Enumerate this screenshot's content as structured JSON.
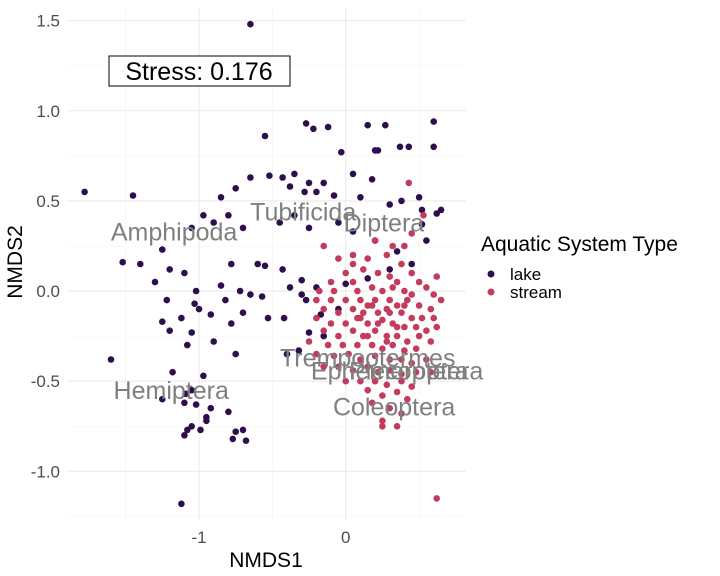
{
  "chart_data": {
    "type": "scatter",
    "xlabel": "NMDS1",
    "ylabel": "NMDS2",
    "xlim": [
      -1.9,
      0.82
    ],
    "ylim": [
      -1.27,
      1.57
    ],
    "x_ticks": [
      -1,
      0
    ],
    "y_ticks": [
      -1.0,
      -0.5,
      0.0,
      0.5,
      1.0,
      1.5
    ],
    "x_tick_labels": [
      "-1",
      "0"
    ],
    "y_tick_labels": [
      "-1.0",
      "-0.5",
      "0.0",
      "0.5",
      "1.0",
      "1.5"
    ],
    "grid": true,
    "legend_position": "right",
    "stress_label": "Stress:  0.176",
    "legend": {
      "title": "Aquatic System Type",
      "entries": [
        "lake",
        "stream"
      ]
    },
    "series": [
      {
        "name": "lake",
        "color": "#2d0f4e",
        "points": [
          [
            -0.65,
            1.48
          ],
          [
            -0.55,
            0.86
          ],
          [
            -0.27,
            0.93
          ],
          [
            -0.22,
            0.9
          ],
          [
            -0.12,
            0.91
          ],
          [
            -0.03,
            0.77
          ],
          [
            0.15,
            0.92
          ],
          [
            0.2,
            0.78
          ],
          [
            0.22,
            0.78
          ],
          [
            0.27,
            0.92
          ],
          [
            0.37,
            0.8
          ],
          [
            0.43,
            0.8
          ],
          [
            0.6,
            0.94
          ],
          [
            0.6,
            0.8
          ],
          [
            -0.65,
            0.63
          ],
          [
            -0.52,
            0.64
          ],
          [
            -0.43,
            0.63
          ],
          [
            -0.35,
            0.65
          ],
          [
            -0.25,
            0.6
          ],
          [
            -0.15,
            0.6
          ],
          [
            0.05,
            0.65
          ],
          [
            0.18,
            0.62
          ],
          [
            -0.75,
            0.57
          ],
          [
            -0.38,
            0.58
          ],
          [
            -0.28,
            0.55
          ],
          [
            -0.2,
            0.55
          ],
          [
            -0.08,
            0.53
          ],
          [
            0.1,
            0.52
          ],
          [
            0.3,
            0.48
          ],
          [
            0.38,
            0.5
          ],
          [
            0.5,
            0.52
          ],
          [
            0.52,
            0.45
          ],
          [
            0.62,
            0.43
          ],
          [
            0.65,
            0.45
          ],
          [
            -1.78,
            0.55
          ],
          [
            -1.45,
            0.53
          ],
          [
            -0.85,
            0.52
          ],
          [
            -0.97,
            0.42
          ],
          [
            -1.05,
            0.35
          ],
          [
            -1.25,
            0.23
          ],
          [
            -0.9,
            0.38
          ],
          [
            -0.8,
            0.42
          ],
          [
            -0.7,
            0.35
          ],
          [
            -0.45,
            0.38
          ],
          [
            -0.35,
            0.42
          ],
          [
            -0.25,
            0.35
          ],
          [
            -0.05,
            0.38
          ],
          [
            0.05,
            0.33
          ],
          [
            0.2,
            0.28
          ],
          [
            0.35,
            0.22
          ],
          [
            0.52,
            0.37
          ],
          [
            0.55,
            0.28
          ],
          [
            -1.52,
            0.16
          ],
          [
            -1.4,
            0.15
          ],
          [
            -1.2,
            0.12
          ],
          [
            -1.1,
            0.1
          ],
          [
            -0.78,
            0.15
          ],
          [
            -0.6,
            0.15
          ],
          [
            -0.55,
            0.14
          ],
          [
            -0.43,
            0.12
          ],
          [
            -0.3,
            0.06
          ],
          [
            -0.2,
            0.02
          ],
          [
            0.0,
            0.04
          ],
          [
            0.15,
            0.07
          ],
          [
            0.3,
            0.12
          ],
          [
            0.45,
            0.15
          ],
          [
            -1.3,
            0.05
          ],
          [
            -1.02,
            0.0
          ],
          [
            -0.85,
            0.03
          ],
          [
            -0.65,
            -0.02
          ],
          [
            -0.38,
            0.02
          ],
          [
            -1.22,
            -0.05
          ],
          [
            -1.03,
            -0.07
          ],
          [
            -0.82,
            -0.05
          ],
          [
            -0.72,
            0.0
          ],
          [
            -0.57,
            -0.03
          ],
          [
            -0.3,
            -0.02
          ],
          [
            -0.27,
            -0.05
          ],
          [
            -1.0,
            -0.1
          ],
          [
            -0.92,
            -0.13
          ],
          [
            -0.7,
            -0.12
          ],
          [
            -0.53,
            -0.15
          ],
          [
            -0.17,
            -0.13
          ],
          [
            -0.05,
            -0.1
          ],
          [
            -1.25,
            -0.17
          ],
          [
            -1.12,
            -0.15
          ],
          [
            -0.78,
            -0.18
          ],
          [
            -0.42,
            -0.15
          ],
          [
            -1.2,
            -0.22
          ],
          [
            -1.05,
            -0.23
          ],
          [
            -0.25,
            -0.23
          ],
          [
            -0.15,
            -0.25
          ],
          [
            -1.08,
            -0.3
          ],
          [
            -0.9,
            -0.28
          ],
          [
            -0.75,
            -0.35
          ],
          [
            -0.4,
            -0.35
          ],
          [
            -0.32,
            -0.33
          ],
          [
            -1.6,
            -0.38
          ],
          [
            -1.18,
            -0.45
          ],
          [
            -0.97,
            -0.47
          ],
          [
            -1.05,
            -0.55
          ],
          [
            -1.02,
            -0.63
          ],
          [
            -0.92,
            -0.65
          ],
          [
            -1.1,
            -0.62
          ],
          [
            -0.95,
            -0.7
          ],
          [
            -0.8,
            -0.67
          ],
          [
            -1.05,
            -0.75
          ],
          [
            -0.99,
            -0.77
          ],
          [
            -0.75,
            -0.78
          ],
          [
            -0.7,
            -0.77
          ],
          [
            -1.1,
            -0.8
          ],
          [
            -0.95,
            -0.72
          ],
          [
            -0.77,
            -0.82
          ],
          [
            -1.08,
            -0.77
          ],
          [
            -1.25,
            -0.6
          ],
          [
            -1.09,
            -0.57
          ],
          [
            -1.12,
            -1.18
          ],
          [
            -0.68,
            -0.83
          ]
        ]
      },
      {
        "name": "stream",
        "color": "#c43b5c",
        "points": [
          [
            0.43,
            0.6
          ],
          [
            0.45,
            0.32
          ],
          [
            0.53,
            0.42
          ],
          [
            0.2,
            0.28
          ],
          [
            0.32,
            0.25
          ],
          [
            -0.15,
            0.25
          ],
          [
            -0.05,
            0.18
          ],
          [
            0.05,
            0.2
          ],
          [
            0.15,
            0.18
          ],
          [
            0.28,
            0.2
          ],
          [
            0.38,
            0.15
          ],
          [
            0.4,
            0.25
          ],
          [
            0.45,
            0.1
          ],
          [
            0.12,
            0.12
          ],
          [
            0.22,
            0.1
          ],
          [
            0.3,
            0.08
          ],
          [
            0.35,
            0.05
          ],
          [
            0.0,
            0.1
          ],
          [
            0.05,
            0.05
          ],
          [
            -0.1,
            0.05
          ],
          [
            -0.18,
            0.0
          ],
          [
            -0.08,
            0.0
          ],
          [
            0.08,
            0.0
          ],
          [
            0.18,
            0.02
          ],
          [
            0.25,
            0.0
          ],
          [
            0.32,
            0.02
          ],
          [
            0.4,
            0.0
          ],
          [
            0.45,
            -0.02
          ],
          [
            0.5,
            0.05
          ],
          [
            0.55,
            0.02
          ],
          [
            0.6,
            -0.02
          ],
          [
            0.62,
            0.08
          ],
          [
            -0.2,
            -0.05
          ],
          [
            -0.1,
            -0.05
          ],
          [
            0.0,
            -0.05
          ],
          [
            0.1,
            -0.05
          ],
          [
            0.15,
            -0.08
          ],
          [
            0.2,
            -0.05
          ],
          [
            0.3,
            -0.05
          ],
          [
            0.35,
            -0.08
          ],
          [
            0.42,
            -0.05
          ],
          [
            0.5,
            -0.08
          ],
          [
            0.58,
            -0.1
          ],
          [
            0.65,
            -0.05
          ],
          [
            -0.15,
            -0.1
          ],
          [
            -0.05,
            -0.12
          ],
          [
            0.05,
            -0.1
          ],
          [
            0.12,
            -0.12
          ],
          [
            0.22,
            -0.12
          ],
          [
            0.28,
            -0.1
          ],
          [
            0.38,
            -0.12
          ],
          [
            0.45,
            -0.15
          ],
          [
            0.52,
            -0.15
          ],
          [
            0.6,
            -0.15
          ],
          [
            -0.2,
            -0.15
          ],
          [
            -0.1,
            -0.18
          ],
          [
            0.0,
            -0.18
          ],
          [
            0.08,
            -0.15
          ],
          [
            0.15,
            -0.18
          ],
          [
            0.25,
            -0.16
          ],
          [
            0.32,
            -0.18
          ],
          [
            0.4,
            -0.2
          ],
          [
            0.48,
            -0.2
          ],
          [
            0.55,
            -0.22
          ],
          [
            0.62,
            -0.2
          ],
          [
            -0.15,
            -0.22
          ],
          [
            -0.05,
            -0.25
          ],
          [
            0.05,
            -0.22
          ],
          [
            0.12,
            -0.25
          ],
          [
            0.2,
            -0.22
          ],
          [
            0.28,
            -0.25
          ],
          [
            0.35,
            -0.25
          ],
          [
            0.42,
            -0.28
          ],
          [
            0.5,
            -0.25
          ],
          [
            0.58,
            -0.28
          ],
          [
            -0.25,
            -0.28
          ],
          [
            -0.12,
            -0.3
          ],
          [
            -0.02,
            -0.3
          ],
          [
            0.08,
            -0.3
          ],
          [
            0.18,
            -0.3
          ],
          [
            0.25,
            -0.32
          ],
          [
            0.32,
            -0.3
          ],
          [
            0.4,
            -0.33
          ],
          [
            0.48,
            -0.32
          ],
          [
            -0.2,
            -0.35
          ],
          [
            -0.08,
            -0.36
          ],
          [
            0.02,
            -0.35
          ],
          [
            0.1,
            -0.38
          ],
          [
            0.2,
            -0.36
          ],
          [
            0.3,
            -0.38
          ],
          [
            0.38,
            -0.38
          ],
          [
            0.45,
            -0.4
          ],
          [
            0.55,
            -0.38
          ],
          [
            -0.15,
            -0.42
          ],
          [
            -0.05,
            -0.42
          ],
          [
            0.05,
            -0.44
          ],
          [
            0.15,
            -0.42
          ],
          [
            0.22,
            -0.45
          ],
          [
            0.3,
            -0.44
          ],
          [
            0.38,
            -0.46
          ],
          [
            0.48,
            -0.45
          ],
          [
            0.58,
            -0.45
          ],
          [
            0.0,
            -0.5
          ],
          [
            0.1,
            -0.5
          ],
          [
            0.2,
            -0.5
          ],
          [
            0.28,
            -0.52
          ],
          [
            0.38,
            -0.5
          ],
          [
            0.45,
            -0.53
          ],
          [
            0.15,
            -0.55
          ],
          [
            0.25,
            -0.58
          ],
          [
            0.35,
            -0.56
          ],
          [
            0.42,
            -0.6
          ],
          [
            0.18,
            -0.62
          ],
          [
            0.3,
            -0.65
          ],
          [
            0.38,
            -0.68
          ],
          [
            0.25,
            -0.72
          ],
          [
            0.35,
            -0.75
          ],
          [
            0.25,
            -0.75
          ],
          [
            0.62,
            -1.15
          ],
          [
            0.1,
            -0.15
          ],
          [
            0.18,
            -0.08
          ],
          [
            0.3,
            -0.12
          ],
          [
            0.35,
            -0.2
          ],
          [
            0.22,
            -0.18
          ],
          [
            0.4,
            -0.08
          ],
          [
            0.05,
            0.15
          ],
          [
            0.15,
            -0.25
          ],
          [
            0.28,
            -0.28
          ]
        ]
      }
    ],
    "annotations": [
      {
        "text": "Amphipoda",
        "x": -1.17,
        "y": 0.33
      },
      {
        "text": "Tubificida",
        "x": -0.29,
        "y": 0.44
      },
      {
        "text": "Diptera",
        "x": 0.26,
        "y": 0.38
      },
      {
        "text": "Hemiptera",
        "x": -1.19,
        "y": -0.55
      },
      {
        "text": "Trempootermes",
        "x": 0.15,
        "y": -0.37
      },
      {
        "text": "Ephemeroptera",
        "x": 0.35,
        "y": -0.44
      },
      {
        "text": "Plecoptera",
        "x": 0.43,
        "y": -0.44
      },
      {
        "text": "Coleoptera",
        "x": 0.33,
        "y": -0.64
      }
    ]
  }
}
